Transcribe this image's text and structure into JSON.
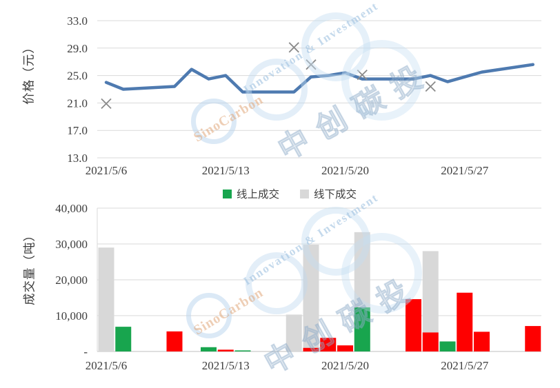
{
  "watermark": {
    "en_line_1": "SinoCarbon",
    "en_line_2": "Innovation & Investment",
    "cjk": "中创碳投"
  },
  "chart_data": [
    {
      "type": "line",
      "name": "price",
      "ylabel": "价格（元）",
      "ymin": 13,
      "ymax": 33,
      "grid": "horizontal",
      "yticks": [
        {
          "label": "33.0",
          "value": 33
        },
        {
          "label": "29.0",
          "value": 29
        },
        {
          "label": "25.0",
          "value": 25
        },
        {
          "label": "21.0",
          "value": 21
        },
        {
          "label": "17.0",
          "value": 17
        },
        {
          "label": "13.0",
          "value": 13
        }
      ],
      "xticks": [
        {
          "label": "2021/5/6",
          "day": 0
        },
        {
          "label": "2021/5/13",
          "day": 7
        },
        {
          "label": "2021/5/20",
          "day": 14
        },
        {
          "label": "2021/5/27",
          "day": 21
        }
      ],
      "line": {
        "color": "#4e7ab0",
        "points": [
          {
            "date": "2021/5/6",
            "day": 0,
            "value": 24.0
          },
          {
            "date": "2021/5/7",
            "day": 1,
            "value": 23.0
          },
          {
            "date": "2021/5/10",
            "day": 4,
            "value": 23.4
          },
          {
            "date": "2021/5/11",
            "day": 5,
            "value": 25.9
          },
          {
            "date": "2021/5/12",
            "day": 6,
            "value": 24.5
          },
          {
            "date": "2021/5/13",
            "day": 7,
            "value": 25.0
          },
          {
            "date": "2021/5/14",
            "day": 8,
            "value": 22.6
          },
          {
            "date": "2021/5/17",
            "day": 11,
            "value": 22.6
          },
          {
            "date": "2021/5/18",
            "day": 12,
            "value": 24.8
          },
          {
            "date": "2021/5/19",
            "day": 13,
            "value": 25.0
          },
          {
            "date": "2021/5/20",
            "day": 14,
            "value": 25.4
          },
          {
            "date": "2021/5/21",
            "day": 15,
            "value": 24.5
          },
          {
            "date": "2021/5/24",
            "day": 18,
            "value": 24.5
          },
          {
            "date": "2021/5/25",
            "day": 19,
            "value": 25.0
          },
          {
            "date": "2021/5/26",
            "day": 20,
            "value": 24.1
          },
          {
            "date": "2021/5/27",
            "day": 21,
            "value": 24.8
          },
          {
            "date": "2021/5/28",
            "day": 22,
            "value": 25.5
          },
          {
            "date": "2021/5/31",
            "day": 25,
            "value": 26.6
          }
        ]
      },
      "markers": {
        "shape": "x",
        "color": "#8a8a8a",
        "points": [
          {
            "date": "2021/5/6",
            "day": 0,
            "value": 20.9
          },
          {
            "date": "2021/5/17",
            "day": 11,
            "value": 29.1
          },
          {
            "date": "2021/5/18",
            "day": 12,
            "value": 26.6
          },
          {
            "date": "2021/5/21",
            "day": 15,
            "value": 25.1
          },
          {
            "date": "2021/5/25",
            "day": 19,
            "value": 23.4
          }
        ]
      }
    },
    {
      "type": "bar",
      "name": "volume",
      "ylabel": "成交量（吨）",
      "ymin": 0,
      "ymax": 40000,
      "grid": "horizontal",
      "yticks": [
        {
          "label": "40,000",
          "value": 40000
        },
        {
          "label": "30,000",
          "value": 30000
        },
        {
          "label": "20,000",
          "value": 20000
        },
        {
          "label": "10,000",
          "value": 10000
        },
        {
          "label": "-",
          "value": 0
        }
      ],
      "xticks": [
        {
          "label": "2021/5/6",
          "day": 0
        },
        {
          "label": "2021/5/13",
          "day": 7
        },
        {
          "label": "2021/5/20",
          "day": 14
        },
        {
          "label": "2021/5/27",
          "day": 21
        }
      ],
      "legend": [
        {
          "label": "线上成交",
          "series": "online",
          "color": "#18a54e"
        },
        {
          "label": "线下成交",
          "series": "offline",
          "color": "#d8d8d8"
        }
      ],
      "series_colors": {
        "online": "#18a54e",
        "offline": "#d8d8d8",
        "unlabeled_red": "#fe0000"
      },
      "bars": [
        {
          "date": "2021/5/6",
          "day": 0,
          "series": "offline",
          "value": 29000
        },
        {
          "date": "2021/5/7",
          "day": 1,
          "series": "online",
          "value": 6900
        },
        {
          "date": "2021/5/10",
          "day": 4,
          "series": "unlabeled_red",
          "value": 5600
        },
        {
          "date": "2021/5/12",
          "day": 6,
          "series": "online",
          "value": 1200
        },
        {
          "date": "2021/5/13",
          "day": 7,
          "series": "unlabeled_red",
          "value": 500
        },
        {
          "date": "2021/5/14",
          "day": 8,
          "series": "online",
          "value": 300
        },
        {
          "date": "2021/5/17",
          "day": 11,
          "series": "offline",
          "value": 10300
        },
        {
          "date": "2021/5/18",
          "day": 12,
          "series": "offline",
          "value": 29800
        },
        {
          "date": "2021/5/18",
          "day": 12,
          "series": "unlabeled_red",
          "value": 1000
        },
        {
          "date": "2021/5/19",
          "day": 13,
          "series": "unlabeled_red",
          "value": 3800
        },
        {
          "date": "2021/5/20",
          "day": 14,
          "series": "unlabeled_red",
          "value": 1700
        },
        {
          "date": "2021/5/21",
          "day": 15,
          "series": "offline",
          "value": 33300
        },
        {
          "date": "2021/5/21",
          "day": 15,
          "series": "online",
          "value": 12300
        },
        {
          "date": "2021/5/24",
          "day": 18,
          "series": "unlabeled_red",
          "value": 14600
        },
        {
          "date": "2021/5/25",
          "day": 19,
          "series": "offline",
          "value": 28000
        },
        {
          "date": "2021/5/25",
          "day": 19,
          "series": "unlabeled_red",
          "value": 5300
        },
        {
          "date": "2021/5/26",
          "day": 20,
          "series": "online",
          "value": 2800
        },
        {
          "date": "2021/5/27",
          "day": 21,
          "series": "unlabeled_red",
          "value": 16400
        },
        {
          "date": "2021/5/28",
          "day": 22,
          "series": "unlabeled_red",
          "value": 5500
        },
        {
          "date": "2021/5/31",
          "day": 25,
          "series": "unlabeled_red",
          "value": 7100
        }
      ]
    }
  ]
}
